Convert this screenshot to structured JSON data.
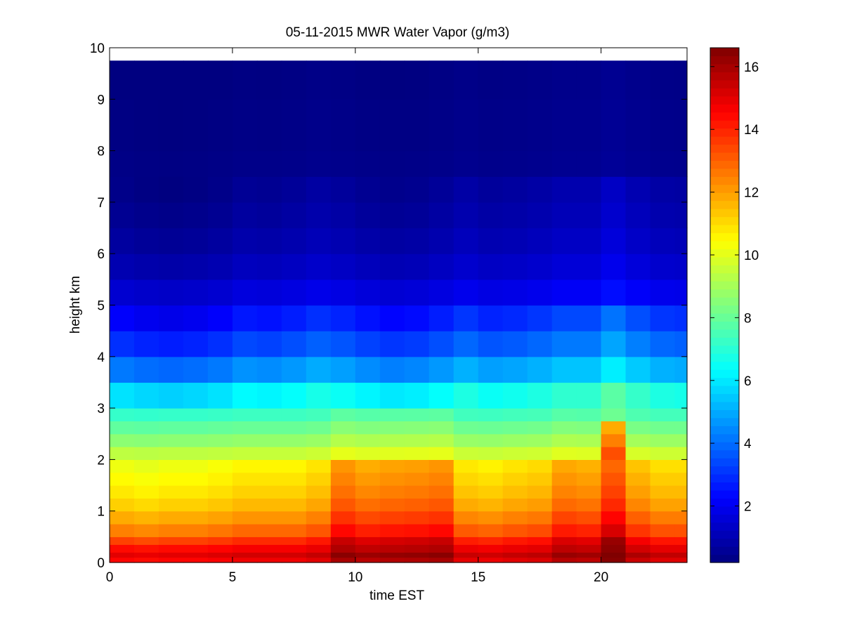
{
  "chart_data": {
    "type": "heatmap",
    "title": "05-11-2015 MWR Water Vapor (g/m3)",
    "xlabel": "time EST",
    "ylabel": "height km",
    "xlim": [
      0,
      23.5
    ],
    "ylim": [
      0,
      10
    ],
    "data_extent": {
      "x": [
        0,
        23.5
      ],
      "y": [
        0,
        9.75
      ]
    },
    "x_ticks": [
      0,
      5,
      10,
      15,
      20
    ],
    "y_ticks": [
      0,
      1,
      2,
      3,
      4,
      5,
      6,
      7,
      8,
      9,
      10
    ],
    "colormap": "jet",
    "colorbar": {
      "range": [
        0.2,
        16.6
      ],
      "ticks": [
        2,
        4,
        6,
        8,
        10,
        12,
        14,
        16
      ]
    },
    "x": [
      0,
      1,
      2,
      3,
      4,
      5,
      6,
      7,
      8,
      9,
      10,
      11,
      12,
      13,
      14,
      15,
      16,
      17,
      18,
      19,
      20,
      21,
      22,
      23
    ],
    "y": [
      0,
      0.1,
      0.2,
      0.35,
      0.5,
      0.75,
      1,
      1.25,
      1.5,
      1.75,
      2,
      2.25,
      2.5,
      2.75,
      3,
      3.5,
      4,
      4.5,
      5,
      5.5,
      6,
      6.5,
      7,
      7.5,
      8,
      9,
      9.75
    ],
    "profile_base": [
      14.5,
      15.0,
      14.4,
      13.5,
      12.5,
      11.8,
      11.2,
      10.8,
      10.5,
      10.2,
      9.4,
      8.6,
      7.9,
      7.2,
      5.9,
      4.2,
      3.0,
      2.2,
      1.5,
      1.0,
      0.7,
      0.5,
      0.35,
      0.3,
      0.25,
      0.2,
      0.2
    ],
    "column_offset": [
      0,
      -0.2,
      0,
      0,
      0.2,
      0.5,
      0.5,
      0.5,
      0.9,
      2.6,
      2.1,
      2.3,
      2.4,
      2.6,
      0.8,
      0.6,
      0.9,
      1.1,
      2.2,
      2.0,
      3.6,
      1.6,
      1.0,
      1.0
    ],
    "upper_boost": [
      0,
      -0.2,
      -0.3,
      -0.2,
      0,
      0.4,
      0.3,
      0.5,
      0.8,
      0.6,
      0.3,
      0.1,
      0.2,
      0.5,
      0.9,
      0.6,
      0.7,
      0.9,
      1.2,
      1.2,
      1.9,
      1.3,
      0.9,
      0.8
    ],
    "values_note_omitted": true
  }
}
